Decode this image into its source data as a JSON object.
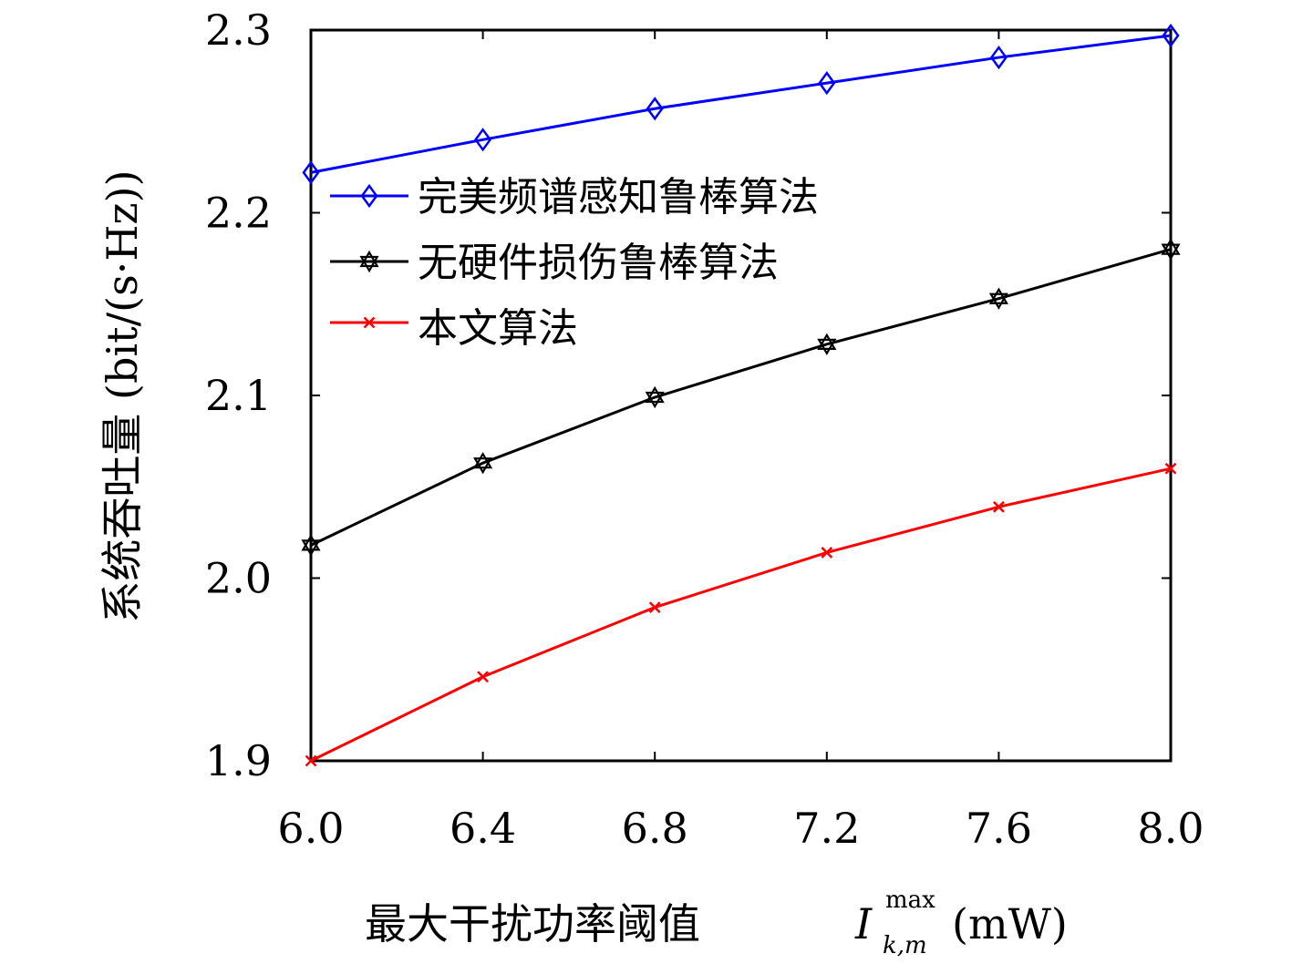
{
  "chart_data": {
    "type": "line",
    "title": "",
    "xlabel": "最大干扰功率阈值",
    "xlabel_symbol": "I",
    "xlabel_sub": "k,m",
    "xlabel_sup": "max",
    "xlabel_unit": "(mW)",
    "ylabel": "系统吞吐量 (bit/(s·Hz))",
    "xlim": [
      6.0,
      8.0
    ],
    "ylim": [
      1.9,
      2.3
    ],
    "x": [
      6.0,
      6.4,
      6.8,
      7.2,
      7.6,
      8.0
    ],
    "x_tick_labels": [
      "6.0",
      "6.4",
      "6.8",
      "7.2",
      "7.6",
      "8.0"
    ],
    "y_ticks": [
      1.9,
      2.0,
      2.1,
      2.2,
      2.3
    ],
    "y_tick_labels": [
      "1.9",
      "2.0",
      "2.1",
      "2.2",
      "2.3"
    ],
    "grid": false,
    "legend_position": "top-left",
    "series": [
      {
        "name": "完美频谱感知鲁棒算法",
        "color": "#0000ff",
        "marker": "diamond",
        "values": [
          2.222,
          2.24,
          2.257,
          2.271,
          2.285,
          2.297
        ]
      },
      {
        "name": "无硬件损伤鲁棒算法",
        "color": "#000000",
        "marker": "hexagram",
        "values": [
          2.018,
          2.063,
          2.099,
          2.128,
          2.153,
          2.18
        ]
      },
      {
        "name": "本文算法",
        "color": "#ff0000",
        "marker": "x",
        "values": [
          1.9,
          1.946,
          1.984,
          2.014,
          2.039,
          2.06
        ]
      }
    ]
  }
}
